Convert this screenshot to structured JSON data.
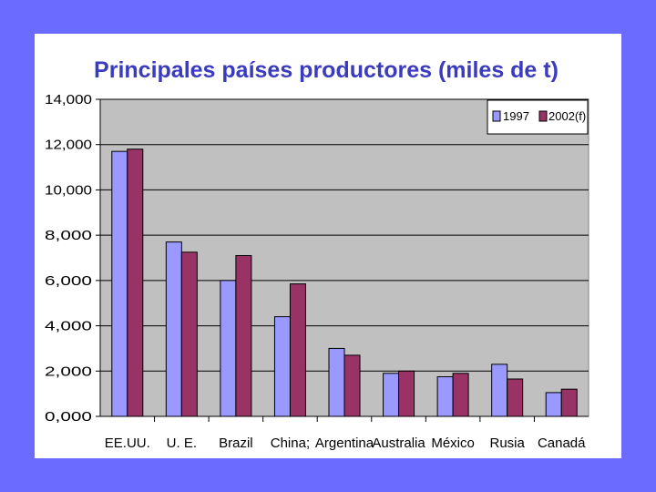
{
  "chart_data": {
    "type": "bar",
    "title": "Principales países productores (miles de t)",
    "xlabel": "",
    "ylabel": "",
    "categories": [
      "EE.UU.",
      "U. E.",
      "Brazil",
      "China;",
      "Argentina",
      "Australia",
      "México",
      "Rusia",
      "Canadá"
    ],
    "series": [
      {
        "name": "1997",
        "color": "#9999ff",
        "values": [
          11700,
          7700,
          6000,
          4400,
          3000,
          1900,
          1750,
          2300,
          1050
        ]
      },
      {
        "name": "2002(f)",
        "color": "#993366",
        "values": [
          11800,
          7250,
          7100,
          5850,
          2700,
          2000,
          1900,
          1650,
          1200
        ]
      }
    ],
    "ylim": [
      0,
      14000
    ],
    "yticks": [
      0,
      2000,
      4000,
      6000,
      8000,
      10000,
      12000,
      14000
    ],
    "ytick_labels": [
      "0,000",
      "2,000",
      "4,000",
      "6,000",
      "8,000",
      "10,000",
      "12,000",
      "14,000"
    ],
    "grid": true,
    "legend_position": "top-right",
    "plot_background": "#c0c0c0"
  }
}
